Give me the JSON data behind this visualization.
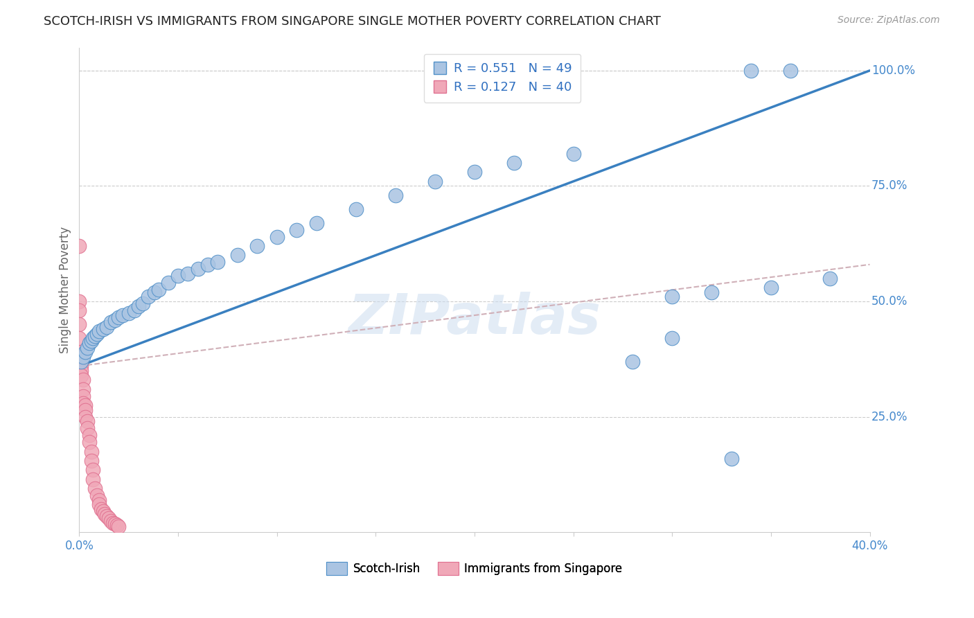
{
  "title": "SCOTCH-IRISH VS IMMIGRANTS FROM SINGAPORE SINGLE MOTHER POVERTY CORRELATION CHART",
  "source": "Source: ZipAtlas.com",
  "ylabel": "Single Mother Poverty",
  "legend_label1": "Scotch-Irish",
  "legend_label2": "Immigrants from Singapore",
  "R1": 0.551,
  "N1": 49,
  "R2": 0.127,
  "N2": 40,
  "color_blue": "#aac4e2",
  "color_pink": "#f0a8b8",
  "edge_blue": "#5090c8",
  "edge_pink": "#e07090",
  "line_blue": "#3a80c0",
  "line_dash": "#d0b0b8",
  "watermark": "ZIPatlas",
  "xlim": [
    0.0,
    0.4
  ],
  "ylim": [
    0.0,
    1.05
  ],
  "si_x": [
    0.001,
    0.002,
    0.003,
    0.004,
    0.005,
    0.006,
    0.007,
    0.008,
    0.009,
    0.01,
    0.012,
    0.014,
    0.016,
    0.018,
    0.02,
    0.022,
    0.025,
    0.028,
    0.03,
    0.032,
    0.035,
    0.038,
    0.04,
    0.045,
    0.05,
    0.055,
    0.06,
    0.065,
    0.07,
    0.08,
    0.09,
    0.1,
    0.11,
    0.12,
    0.14,
    0.16,
    0.18,
    0.2,
    0.22,
    0.25,
    0.28,
    0.3,
    0.32,
    0.34,
    0.36,
    0.38,
    0.3,
    0.35,
    0.33
  ],
  "si_y": [
    0.37,
    0.38,
    0.39,
    0.4,
    0.41,
    0.415,
    0.42,
    0.425,
    0.43,
    0.435,
    0.44,
    0.445,
    0.455,
    0.46,
    0.465,
    0.47,
    0.475,
    0.48,
    0.49,
    0.495,
    0.51,
    0.52,
    0.525,
    0.54,
    0.555,
    0.56,
    0.57,
    0.58,
    0.585,
    0.6,
    0.62,
    0.64,
    0.655,
    0.67,
    0.7,
    0.73,
    0.76,
    0.78,
    0.8,
    0.82,
    0.37,
    0.42,
    0.52,
    1.0,
    1.0,
    0.55,
    0.51,
    0.53,
    0.16
  ],
  "sg_x": [
    0.0,
    0.0,
    0.0,
    0.0,
    0.0,
    0.001,
    0.001,
    0.001,
    0.001,
    0.001,
    0.001,
    0.002,
    0.002,
    0.002,
    0.002,
    0.003,
    0.003,
    0.003,
    0.004,
    0.004,
    0.005,
    0.005,
    0.006,
    0.006,
    0.007,
    0.007,
    0.008,
    0.009,
    0.01,
    0.01,
    0.011,
    0.012,
    0.013,
    0.014,
    0.015,
    0.016,
    0.017,
    0.018,
    0.019,
    0.02
  ],
  "sg_y": [
    0.62,
    0.5,
    0.48,
    0.45,
    0.42,
    0.39,
    0.38,
    0.37,
    0.36,
    0.35,
    0.34,
    0.33,
    0.31,
    0.295,
    0.28,
    0.275,
    0.265,
    0.25,
    0.24,
    0.225,
    0.21,
    0.195,
    0.175,
    0.155,
    0.135,
    0.115,
    0.095,
    0.08,
    0.07,
    0.06,
    0.05,
    0.045,
    0.04,
    0.035,
    0.03,
    0.025,
    0.02,
    0.018,
    0.015,
    0.012
  ]
}
